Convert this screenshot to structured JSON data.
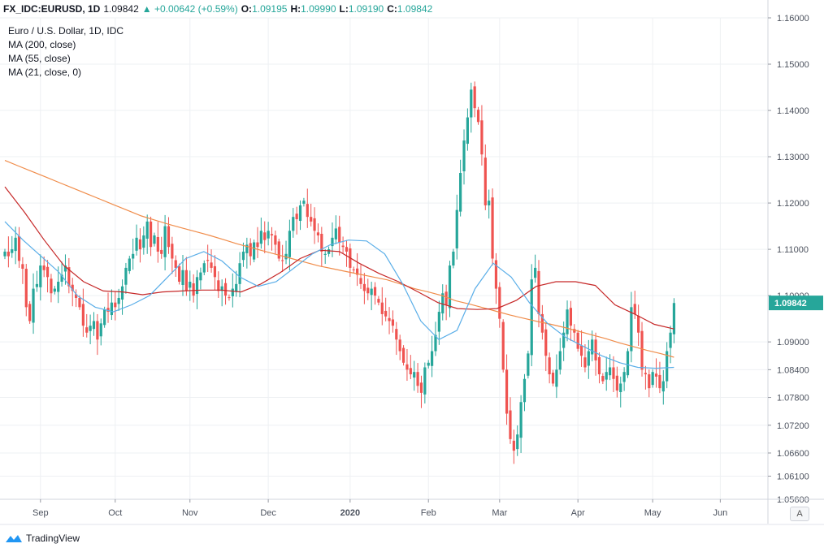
{
  "header": {
    "symbol": "FX_IDC:EURUSD, 1D",
    "last": "1.09842",
    "change": "▲ +0.00642 (+0.59%)",
    "o_label": "O:",
    "o": "1.09195",
    "h_label": "H:",
    "h": "1.09990",
    "l_label": "L:",
    "l": "1.09190",
    "c_label": "C:",
    "c": "1.09842"
  },
  "legend": {
    "title": "Euro / U.S. Dollar, 1D, IDC",
    "ma200": "MA (200, close)",
    "ma55": "MA (55, close)",
    "ma21": "MA (21, close, 0)"
  },
  "axis_button": "A",
  "brand": "TradingView",
  "colors": {
    "up": "#26a69a",
    "down": "#ef5350",
    "ma200": "#f08c4a",
    "ma55": "#c62828",
    "ma21": "#5aaee8",
    "price_label_bg": "#26a69a",
    "grid": "#eef0f3"
  },
  "chart_data": {
    "type": "candlestick",
    "title": "Euro / U.S. Dollar, 1D, IDC",
    "ylim": [
      1.056,
      1.16
    ],
    "y_ticks": [
      "1.16000",
      "1.15000",
      "1.14000",
      "1.13000",
      "1.12000",
      "1.11000",
      "1.10000",
      "1.09000",
      "1.08400",
      "1.07800",
      "1.07200",
      "1.06600",
      "1.06100",
      "1.05600"
    ],
    "y_tick_values": [
      1.16,
      1.15,
      1.14,
      1.13,
      1.12,
      1.11,
      1.1,
      1.09,
      1.084,
      1.078,
      1.072,
      1.066,
      1.061,
      1.056
    ],
    "current_price_label": "1.09842",
    "current_price": 1.09842,
    "x_tick_labels": [
      "Sep",
      "Oct",
      "Nov",
      "Dec",
      "2020",
      "Feb",
      "Mar",
      "Apr",
      "May",
      "Jun"
    ],
    "x_tick_index": [
      10,
      31,
      52,
      74,
      97,
      119,
      139,
      161,
      182,
      201
    ],
    "x_bold": "2020",
    "close": [
      1.1095,
      1.1085,
      1.11,
      1.1125,
      1.1075,
      1.1058,
      1.0975,
      1.0945,
      1.1015,
      1.1025,
      1.1065,
      1.1055,
      1.104,
      1.1005,
      1.1015,
      1.103,
      1.1045,
      1.1065,
      1.102,
      1.101,
      1.0995,
      1.0975,
      1.0935,
      1.092,
      1.0935,
      1.0945,
      1.0905,
      1.094,
      1.097,
      1.0965,
      1.0985,
      1.0975,
      1.0995,
      1.102,
      1.106,
      1.108,
      1.109,
      1.1125,
      1.11,
      1.113,
      1.116,
      1.1105,
      1.113,
      1.1095,
      1.109,
      1.115,
      1.1105,
      1.108,
      1.106,
      1.103,
      1.1055,
      1.101,
      1.103,
      1.1,
      1.104,
      1.105,
      1.107,
      1.1075,
      1.106,
      1.104,
      1.101,
      1.102,
      1.1,
      1.0995,
      1.1015,
      1.1025,
      1.107,
      1.1095,
      1.111,
      1.1085,
      1.1115,
      1.1105,
      1.114,
      1.112,
      1.114,
      1.113,
      1.111,
      1.108,
      1.1075,
      1.109,
      1.114,
      1.117,
      1.1165,
      1.1195,
      1.1205,
      1.117,
      1.116,
      1.114,
      1.113,
      1.1095,
      1.109,
      1.11,
      1.1125,
      1.1145,
      1.1115,
      1.1105,
      1.1095,
      1.106,
      1.1055,
      1.1045,
      1.1025,
      1.101,
      1.1005,
      1.1015,
      1.1,
      1.0985,
      1.096,
      1.0955,
      1.0945,
      1.0935,
      1.0905,
      1.088,
      1.0855,
      1.084,
      1.083,
      1.0835,
      1.0805,
      1.079,
      1.0845,
      1.0855,
      1.088,
      1.0915,
      1.0965,
      1.1005,
      1.098,
      1.1065,
      1.1095,
      1.1185,
      1.1265,
      1.1335,
      1.1385,
      1.1445,
      1.1405,
      1.1375,
      1.1305,
      1.1195,
      1.1205,
      1.108,
      1.1015,
      1.095,
      1.084,
      1.0745,
      1.069,
      1.0665,
      1.07,
      1.077,
      1.082,
      1.0875,
      1.1035,
      1.106,
      1.096,
      1.092,
      1.087,
      1.083,
      1.081,
      1.084,
      1.088,
      1.092,
      1.097,
      1.0935,
      1.092,
      1.0885,
      1.087,
      1.0845,
      1.088,
      1.0905,
      1.086,
      1.083,
      1.0815,
      1.0835,
      1.0845,
      1.082,
      1.0795,
      1.081,
      1.0835,
      1.088,
      1.0975,
      1.096,
      1.092,
      1.084,
      1.083,
      1.08,
      1.0835,
      1.0825,
      1.08,
      1.0815,
      1.088,
      1.092,
      1.0984
    ],
    "ma200": [
      1.1292,
      1.128,
      1.1268,
      1.1256,
      1.1244,
      1.1232,
      1.122,
      1.1208,
      1.1196,
      1.1184,
      1.1172,
      1.1163,
      1.1154,
      1.1146,
      1.1138,
      1.113,
      1.1121,
      1.1112,
      1.1104,
      1.1096,
      1.1088,
      1.108,
      1.1072,
      1.1064,
      1.1058,
      1.1052,
      1.1046,
      1.104,
      1.1034,
      1.1025,
      1.1015,
      1.1008,
      1.1,
      1.0989,
      1.0982,
      1.0974,
      1.0966,
      1.0958,
      1.0951,
      1.0944,
      1.0938,
      1.0931,
      1.0923,
      1.0915,
      1.0907,
      1.0898,
      1.089,
      1.0882,
      1.0875,
      1.0867
    ],
    "ma55": [
      1.1235,
      1.118,
      1.112,
      1.1065,
      1.103,
      1.101,
      1.1008,
      1.1002,
      1.1008,
      1.101,
      1.1012,
      1.1012,
      1.1008,
      1.1025,
      1.105,
      1.108,
      1.1098,
      1.1095,
      1.107,
      1.1048,
      1.103,
      1.1008,
      1.0985,
      1.0972,
      1.097,
      1.0972,
      1.099,
      1.102,
      1.103,
      1.103,
      1.1022,
      1.098,
      1.096,
      1.0938,
      1.0928
    ],
    "ma21": [
      1.116,
      1.112,
      1.1085,
      1.105,
      1.1,
      1.0975,
      1.0965,
      1.098,
      1.1,
      1.104,
      1.108,
      1.1095,
      1.1075,
      1.104,
      1.102,
      1.103,
      1.106,
      1.109,
      1.111,
      1.112,
      1.1118,
      1.109,
      1.1025,
      1.0945,
      1.0905,
      1.0925,
      1.1015,
      1.107,
      1.104,
      1.0985,
      1.094,
      1.091,
      1.089,
      1.087,
      1.0855,
      1.0845,
      1.0843,
      1.0845
    ]
  }
}
